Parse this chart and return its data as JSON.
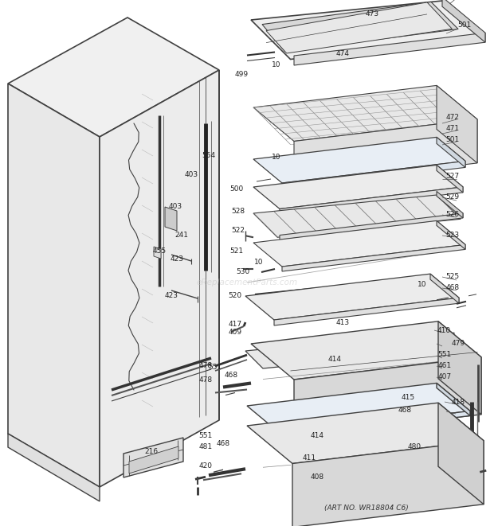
{
  "art_no": "(ART NO. WR18804 C6)",
  "watermark": "eReplacementParts.com",
  "bg_color": "#ffffff",
  "line_color": "#404040",
  "text_color": "#222222",
  "fig_w": 6.2,
  "fig_h": 6.61,
  "dpi": 100
}
